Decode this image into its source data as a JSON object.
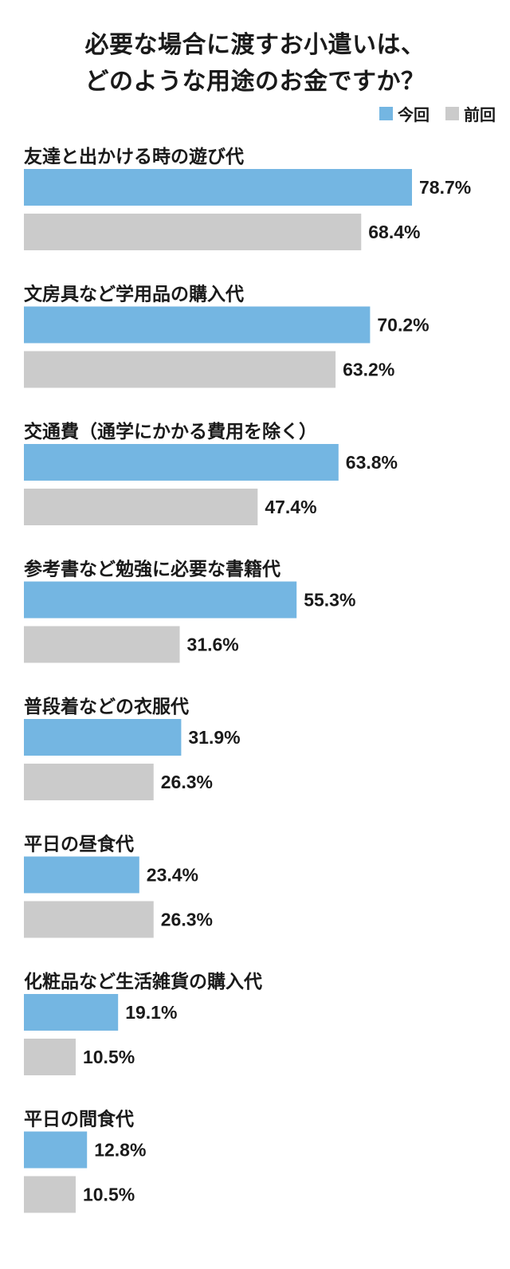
{
  "chart_data": {
    "type": "bar",
    "orientation": "horizontal",
    "title_line1": "必要な場合に渡すお小遣いは、",
    "title_line2": "どのような用途のお金ですか？",
    "legend_placement": "top-right",
    "grid": false,
    "xlim": [
      0,
      100
    ],
    "categories": [
      "友達と出かける時の遊び代",
      "文房具など学用品の購入代",
      "交通費（通学にかかる費用を除く）",
      "参考書など勉強に必要な書籍代",
      "普段着などの衣服代",
      "平日の昼食代",
      "化粧品など生活雑貨の購入代",
      "平日の間食代"
    ],
    "series": [
      {
        "name": "今回",
        "color": "#74b6e2",
        "values": [
          78.7,
          70.2,
          63.8,
          55.3,
          31.9,
          23.4,
          19.1,
          12.8
        ],
        "labels": [
          "78.7%",
          "70.2%",
          "63.8%",
          "55.3%",
          "31.9%",
          "23.4%",
          "19.1%",
          "12.8%"
        ]
      },
      {
        "name": "前回",
        "color": "#cbcbcb",
        "values": [
          68.4,
          63.2,
          47.4,
          31.6,
          26.3,
          26.3,
          10.5,
          10.5
        ],
        "labels": [
          "68.4%",
          "63.2%",
          "47.4%",
          "31.6%",
          "26.3%",
          "26.3%",
          "10.5%",
          "10.5%"
        ]
      }
    ]
  }
}
